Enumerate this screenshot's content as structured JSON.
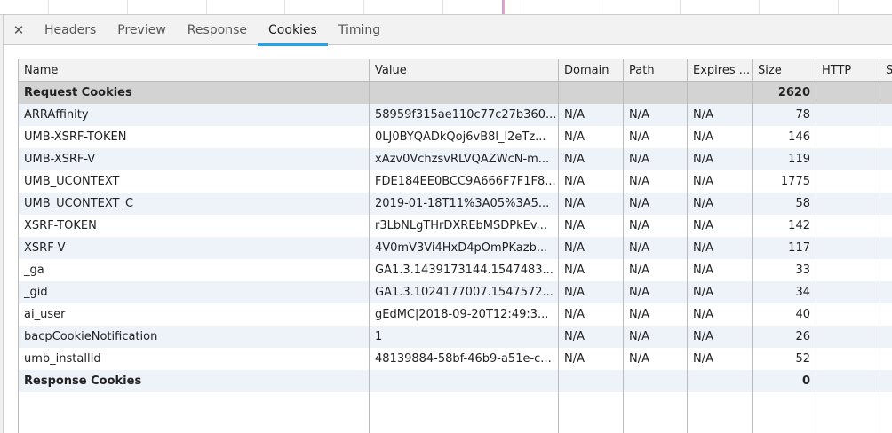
{
  "tabs": {
    "close_icon": "close-icon",
    "items": [
      "Headers",
      "Preview",
      "Response",
      "Cookies",
      "Timing"
    ],
    "active": "Cookies",
    "accent": "#1ea7e6"
  },
  "table": {
    "columns": [
      "Name",
      "Value",
      "Domain",
      "Path",
      "Expires ...",
      "Size",
      "HTTP",
      "S"
    ],
    "request_group": {
      "label": "Request Cookies",
      "size": "2620"
    },
    "rows": [
      {
        "name": "ARRAffinity",
        "value": "58959f315ae110c77c27b360...",
        "domain": "N/A",
        "path": "N/A",
        "expires": "N/A",
        "size": "78"
      },
      {
        "name": "UMB-XSRF-TOKEN",
        "value": "0LJ0BYQADkQoj6vB8l_l2eTz...",
        "domain": "N/A",
        "path": "N/A",
        "expires": "N/A",
        "size": "146"
      },
      {
        "name": "UMB-XSRF-V",
        "value": "xAzv0VchzsvRLVQAZWcN-m...",
        "domain": "N/A",
        "path": "N/A",
        "expires": "N/A",
        "size": "119"
      },
      {
        "name": "UMB_UCONTEXT",
        "value": "FDE184EE0BCC9A666F7F1F8...",
        "domain": "N/A",
        "path": "N/A",
        "expires": "N/A",
        "size": "1775"
      },
      {
        "name": "UMB_UCONTEXT_C",
        "value": "2019-01-18T11%3A05%3A5...",
        "domain": "N/A",
        "path": "N/A",
        "expires": "N/A",
        "size": "58"
      },
      {
        "name": "XSRF-TOKEN",
        "value": "r3LbNLgTHrDXREbMSDPkEv...",
        "domain": "N/A",
        "path": "N/A",
        "expires": "N/A",
        "size": "142"
      },
      {
        "name": "XSRF-V",
        "value": "4V0mV3Vi4HxD4pOmPKazb...",
        "domain": "N/A",
        "path": "N/A",
        "expires": "N/A",
        "size": "117"
      },
      {
        "name": "_ga",
        "value": "GA1.3.1439173144.1547483...",
        "domain": "N/A",
        "path": "N/A",
        "expires": "N/A",
        "size": "33"
      },
      {
        "name": "_gid",
        "value": "GA1.3.1024177007.1547572...",
        "domain": "N/A",
        "path": "N/A",
        "expires": "N/A",
        "size": "34"
      },
      {
        "name": "ai_user",
        "value": "gEdMC|2018-09-20T12:49:3...",
        "domain": "N/A",
        "path": "N/A",
        "expires": "N/A",
        "size": "40"
      },
      {
        "name": "bacpCookieNotification",
        "value": "1",
        "domain": "N/A",
        "path": "N/A",
        "expires": "N/A",
        "size": "26"
      },
      {
        "name": "umb_installId",
        "value": "48139884-58bf-46b9-a51e-c...",
        "domain": "N/A",
        "path": "N/A",
        "expires": "N/A",
        "size": "52"
      }
    ],
    "response_group": {
      "label": "Response Cookies",
      "size": "0"
    }
  }
}
